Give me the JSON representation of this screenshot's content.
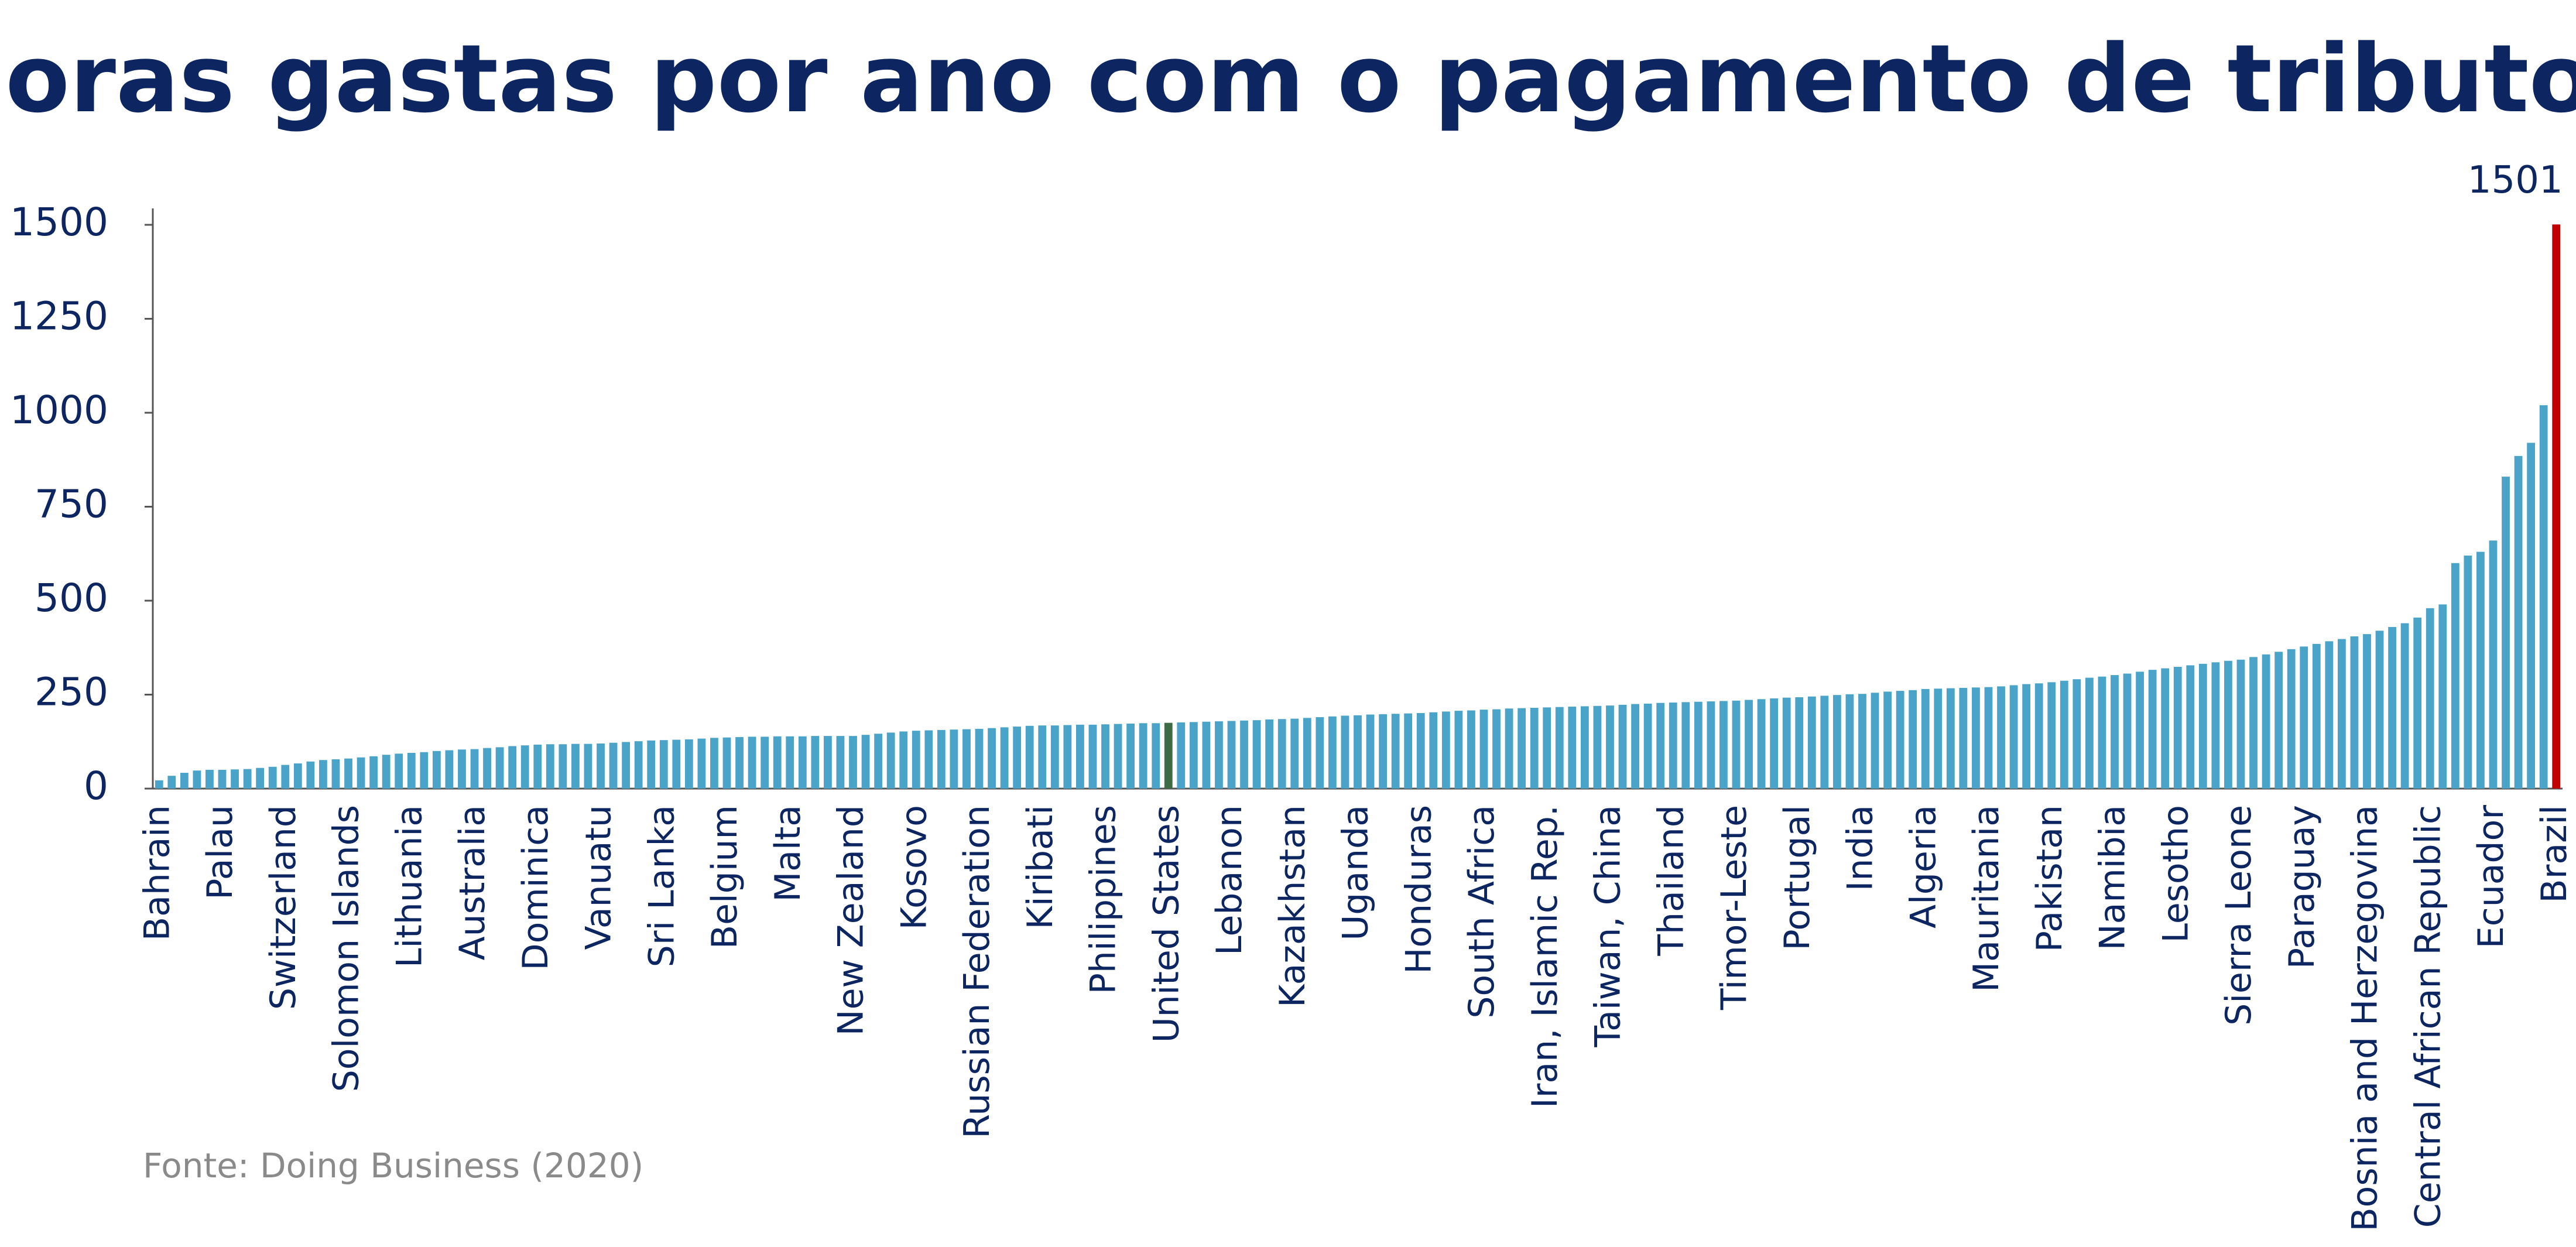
{
  "chart_data": {
    "type": "bar",
    "title": "Horas gastas por ano com o pagamento de tributos",
    "source": "Fonte: Doing Business (2020)",
    "categories": [
      "Bahrain",
      null,
      null,
      null,
      null,
      "Palau",
      null,
      null,
      null,
      null,
      "Switzerland",
      null,
      null,
      null,
      null,
      "Solomon Islands",
      null,
      null,
      null,
      null,
      "Lithuania",
      null,
      null,
      null,
      null,
      "Australia",
      null,
      null,
      null,
      null,
      "Dominica",
      null,
      null,
      null,
      null,
      "Vanuatu",
      null,
      null,
      null,
      null,
      "Sri Lanka",
      null,
      null,
      null,
      null,
      "Belgium",
      null,
      null,
      null,
      null,
      "Malta",
      null,
      null,
      null,
      null,
      "New Zealand",
      null,
      null,
      null,
      null,
      "Kosovo",
      null,
      null,
      null,
      null,
      "Russian Federation",
      null,
      null,
      null,
      null,
      "Kiribati",
      null,
      null,
      null,
      null,
      "Philippines",
      null,
      null,
      null,
      null,
      "United States",
      null,
      null,
      null,
      null,
      "Lebanon",
      null,
      null,
      null,
      null,
      "Kazakhstan",
      null,
      null,
      null,
      null,
      "Uganda",
      null,
      null,
      null,
      null,
      "Honduras",
      null,
      null,
      null,
      null,
      "South Africa",
      null,
      null,
      null,
      null,
      "Iran, Islamic Rep.",
      null,
      null,
      null,
      null,
      "Taiwan, China",
      null,
      null,
      null,
      null,
      "Thailand",
      null,
      null,
      null,
      null,
      "Timor-Leste",
      null,
      null,
      null,
      null,
      "Portugal",
      null,
      null,
      null,
      null,
      "India",
      null,
      null,
      null,
      null,
      "Algeria",
      null,
      null,
      null,
      null,
      "Mauritania",
      null,
      null,
      null,
      null,
      "Pakistan",
      null,
      null,
      null,
      null,
      "Namibia",
      null,
      null,
      null,
      null,
      "Lesotho",
      null,
      null,
      null,
      null,
      "Sierra Leone",
      null,
      null,
      null,
      null,
      "Paraguay",
      null,
      null,
      null,
      null,
      "Bosnia and Herzegovina",
      null,
      null,
      null,
      null,
      "Central African Republic",
      null,
      null,
      null,
      null,
      "Ecuador",
      null,
      null,
      null,
      null,
      "Brazil"
    ],
    "values": [
      22,
      34,
      42,
      48,
      50,
      50,
      51,
      52,
      55,
      58,
      63,
      67,
      72,
      76,
      78,
      80,
      83,
      86,
      90,
      93,
      95,
      97,
      100,
      102,
      104,
      105,
      108,
      110,
      113,
      115,
      117,
      118,
      118,
      119,
      119,
      120,
      122,
      124,
      126,
      128,
      129,
      130,
      131,
      133,
      135,
      136,
      137,
      138,
      138,
      139,
      139,
      139,
      140,
      140,
      140,
      140,
      143,
      146,
      149,
      152,
      154,
      155,
      156,
      157,
      158,
      159,
      161,
      163,
      165,
      167,
      168,
      168,
      169,
      170,
      170,
      171,
      172,
      173,
      174,
      174,
      175,
      176,
      177,
      178,
      179,
      180,
      181,
      182,
      184,
      185,
      186,
      188,
      190,
      192,
      194,
      195,
      197,
      198,
      199,
      200,
      201,
      203,
      205,
      207,
      208,
      210,
      211,
      213,
      214,
      215,
      216,
      217,
      218,
      219,
      220,
      221,
      223,
      225,
      226,
      228,
      229,
      230,
      231,
      232,
      233,
      234,
      236,
      238,
      240,
      242,
      243,
      245,
      247,
      249,
      251,
      252,
      255,
      258,
      260,
      262,
      265,
      266,
      267,
      268,
      269,
      270,
      272,
      275,
      278,
      280,
      283,
      287,
      291,
      295,
      298,
      302,
      306,
      311,
      316,
      320,
      324,
      328,
      332,
      336,
      340,
      343,
      350,
      357,
      364,
      371,
      378,
      385,
      392,
      398,
      405,
      411,
      420,
      430,
      440,
      455,
      480,
      490,
      600,
      620,
      630,
      660,
      830,
      885,
      920,
      1020,
      1501
    ],
    "color": "#4aa3c8",
    "highlights": [
      {
        "category": "United States",
        "color": "#3d6b45"
      },
      {
        "category": "Brazil",
        "color": "#c00000",
        "show_label": true
      }
    ],
    "ylim": [
      0,
      1500
    ],
    "yticks": [
      0,
      250,
      500,
      750,
      1000,
      1250,
      1500
    ],
    "grid": false
  }
}
